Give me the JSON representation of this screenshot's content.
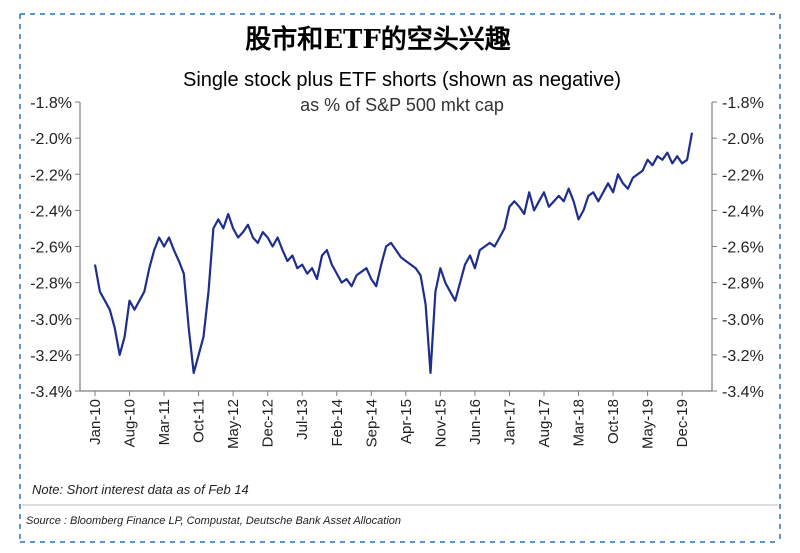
{
  "title_cn": "股市和ETF的空头兴趣",
  "note": "Note: Short interest data as of Feb 14",
  "source": "Source : Bloomberg Finance LP, Compustat, Deutsche Bank Asset Allocation",
  "colors": {
    "line": "#1f2e8c",
    "axis": "#7f7f7f",
    "dashed": "#2e6fb7"
  },
  "chart_data": {
    "type": "line",
    "title": "Single stock plus ETF shorts (shown as negative)",
    "subtitle": "as % of S&P 500 mkt cap",
    "xlabel": "",
    "ylabel": "",
    "ylim": [
      -3.4,
      -1.8
    ],
    "yticks": [
      "-1.8%",
      "-2.0%",
      "-2.2%",
      "-2.4%",
      "-2.6%",
      "-2.8%",
      "-3.0%",
      "-3.2%",
      "-3.4%"
    ],
    "ytick_values": [
      -1.8,
      -2.0,
      -2.2,
      -2.4,
      -2.6,
      -2.8,
      -3.0,
      -3.2,
      -3.4
    ],
    "x_categories": [
      "Jan-10",
      "Aug-10",
      "Mar-11",
      "Oct-11",
      "May-12",
      "Dec-12",
      "Jul-13",
      "Feb-14",
      "Sep-14",
      "Apr-15",
      "Nov-15",
      "Jun-16",
      "Jan-17",
      "Aug-17",
      "Mar-18",
      "Oct-18",
      "May-19",
      "Dec-19"
    ],
    "dual_y_axis": true,
    "grid": false,
    "series": [
      {
        "x": [
          "2010-01",
          "2010-02",
          "2010-03",
          "2010-04",
          "2010-05",
          "2010-06",
          "2010-07",
          "2010-08",
          "2010-09",
          "2010-10",
          "2010-11",
          "2010-12",
          "2011-01",
          "2011-02",
          "2011-03",
          "2011-04",
          "2011-05",
          "2011-06",
          "2011-07",
          "2011-08",
          "2011-09",
          "2011-10",
          "2011-11",
          "2011-12",
          "2012-01",
          "2012-02",
          "2012-03",
          "2012-04",
          "2012-05",
          "2012-06",
          "2012-07",
          "2012-08",
          "2012-09",
          "2012-10",
          "2012-11",
          "2012-12",
          "2013-01",
          "2013-02",
          "2013-03",
          "2013-04",
          "2013-05",
          "2013-06",
          "2013-07",
          "2013-08",
          "2013-09",
          "2013-10",
          "2013-11",
          "2013-12",
          "2014-01",
          "2014-02",
          "2014-03",
          "2014-04",
          "2014-05",
          "2014-06",
          "2014-07",
          "2014-08",
          "2014-09",
          "2014-10",
          "2014-11",
          "2014-12",
          "2015-01",
          "2015-02",
          "2015-03",
          "2015-04",
          "2015-05",
          "2015-06",
          "2015-07",
          "2015-08",
          "2015-09",
          "2015-10",
          "2015-11",
          "2015-12",
          "2016-01",
          "2016-02",
          "2016-03",
          "2016-04",
          "2016-05",
          "2016-06",
          "2016-07",
          "2016-08",
          "2016-09",
          "2016-10",
          "2016-11",
          "2016-12",
          "2017-01",
          "2017-02",
          "2017-03",
          "2017-04",
          "2017-05",
          "2017-06",
          "2017-07",
          "2017-08",
          "2017-09",
          "2017-10",
          "2017-11",
          "2017-12",
          "2018-01",
          "2018-02",
          "2018-03",
          "2018-04",
          "2018-05",
          "2018-06",
          "2018-07",
          "2018-08",
          "2018-09",
          "2018-10",
          "2018-11",
          "2018-12",
          "2019-01",
          "2019-02",
          "2019-03",
          "2019-04",
          "2019-05",
          "2019-06",
          "2019-07",
          "2019-08",
          "2019-09",
          "2019-10",
          "2019-11",
          "2019-12",
          "2020-01",
          "2020-02"
        ],
        "values": [
          -2.7,
          -2.85,
          -2.9,
          -2.95,
          -3.05,
          -3.2,
          -3.1,
          -2.9,
          -2.95,
          -2.9,
          -2.85,
          -2.72,
          -2.62,
          -2.55,
          -2.6,
          -2.55,
          -2.62,
          -2.68,
          -2.75,
          -3.05,
          -3.3,
          -3.2,
          -3.1,
          -2.85,
          -2.5,
          -2.45,
          -2.5,
          -2.42,
          -2.5,
          -2.55,
          -2.52,
          -2.48,
          -2.55,
          -2.58,
          -2.52,
          -2.55,
          -2.6,
          -2.55,
          -2.62,
          -2.68,
          -2.65,
          -2.72,
          -2.7,
          -2.75,
          -2.72,
          -2.78,
          -2.65,
          -2.62,
          -2.7,
          -2.75,
          -2.8,
          -2.78,
          -2.82,
          -2.76,
          -2.74,
          -2.72,
          -2.78,
          -2.82,
          -2.7,
          -2.6,
          -2.58,
          -2.62,
          -2.66,
          -2.68,
          -2.7,
          -2.72,
          -2.76,
          -2.92,
          -3.3,
          -2.85,
          -2.72,
          -2.8,
          -2.85,
          -2.9,
          -2.8,
          -2.7,
          -2.65,
          -2.72,
          -2.62,
          -2.6,
          -2.58,
          -2.6,
          -2.55,
          -2.5,
          -2.38,
          -2.35,
          -2.38,
          -2.42,
          -2.3,
          -2.4,
          -2.35,
          -2.3,
          -2.38,
          -2.35,
          -2.32,
          -2.35,
          -2.28,
          -2.35,
          -2.45,
          -2.4,
          -2.32,
          -2.3,
          -2.35,
          -2.3,
          -2.25,
          -2.3,
          -2.2,
          -2.25,
          -2.28,
          -2.22,
          -2.2,
          -2.18,
          -2.12,
          -2.15,
          -2.1,
          -2.12,
          -2.08,
          -2.14,
          -2.1,
          -2.14,
          -2.12,
          -1.97
        ]
      }
    ]
  }
}
